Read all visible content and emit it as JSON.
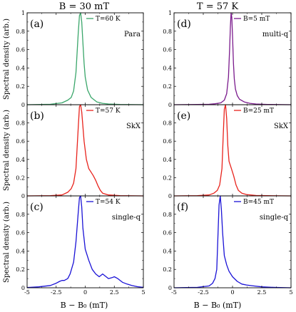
{
  "figure": {
    "col_titles": [
      "B = 30 mT",
      "T = 57 K"
    ],
    "ylabel": "Spectral density (arb.)",
    "xlabel": "B − B₀ (mT)"
  },
  "chart_data": [
    {
      "type": "line",
      "panel": "(a)",
      "annotation": "Para",
      "legend": "T=60 K",
      "color": "#3aa66a",
      "xlim": [
        -5,
        5
      ],
      "ylim": [
        0,
        1.0
      ],
      "xticks": [
        "-5",
        "-2.5",
        "0",
        "2.5",
        "5"
      ],
      "yticks": [
        "0",
        "0.2",
        "0.4",
        "0.6",
        "0.8",
        "1"
      ],
      "series": [
        {
          "name": "T=60 K",
          "x": [
            -5,
            -3,
            -2,
            -1.5,
            -1.2,
            -1.0,
            -0.8,
            -0.6,
            -0.5,
            -0.4,
            -0.3,
            -0.2,
            -0.1,
            0,
            0.2,
            0.5,
            1,
            1.5,
            2,
            3,
            5
          ],
          "y": [
            0,
            0.005,
            0.02,
            0.05,
            0.08,
            0.15,
            0.35,
            0.78,
            0.97,
            1.0,
            0.9,
            0.68,
            0.45,
            0.3,
            0.16,
            0.08,
            0.03,
            0.015,
            0.008,
            0.003,
            0
          ]
        }
      ]
    },
    {
      "type": "line",
      "panel": "(b)",
      "annotation": "SkX",
      "legend": "T=57 K",
      "color": "#e8231c",
      "xlim": [
        -5,
        5
      ],
      "ylim": [
        0,
        1.0
      ],
      "xticks": [
        "-5",
        "-2.5",
        "0",
        "2.5",
        "5"
      ],
      "yticks": [
        "0",
        "0.2",
        "0.4",
        "0.6",
        "0.8",
        "1"
      ],
      "series": [
        {
          "name": "T=57 K",
          "x": [
            -5,
            -3,
            -2,
            -1.5,
            -1.2,
            -1.0,
            -0.8,
            -0.6,
            -0.5,
            -0.4,
            -0.3,
            -0.1,
            0.1,
            0.3,
            0.5,
            0.7,
            0.9,
            1.1,
            1.3,
            1.5,
            2,
            3,
            5
          ],
          "y": [
            0,
            0.003,
            0.01,
            0.04,
            0.08,
            0.14,
            0.3,
            0.75,
            0.98,
            1.0,
            0.92,
            0.6,
            0.4,
            0.3,
            0.26,
            0.22,
            0.17,
            0.11,
            0.06,
            0.03,
            0.01,
            0.003,
            0
          ]
        }
      ]
    },
    {
      "type": "line",
      "panel": "(c)",
      "annotation": "single-q",
      "legend": "T=54 K",
      "color": "#1a12d6",
      "xlim": [
        -5,
        5
      ],
      "ylim": [
        0,
        1.0
      ],
      "xticks": [
        "-5",
        "-2.5",
        "0",
        "2.5",
        "5"
      ],
      "yticks": [
        "0",
        "0.2",
        "0.4",
        "0.6",
        "0.8",
        "1"
      ],
      "series": [
        {
          "name": "T=54 K",
          "x": [
            -5,
            -4,
            -3,
            -2.5,
            -2.2,
            -2.0,
            -1.8,
            -1.5,
            -1.3,
            -1.0,
            -0.8,
            -0.6,
            -0.5,
            -0.4,
            -0.3,
            -0.2,
            0,
            0.3,
            0.6,
            0.9,
            1.2,
            1.5,
            1.8,
            2.0,
            2.3,
            2.5,
            2.8,
            3.2,
            3.6,
            4,
            4.5,
            5
          ],
          "y": [
            0.003,
            0.01,
            0.025,
            0.05,
            0.07,
            0.08,
            0.08,
            0.1,
            0.15,
            0.28,
            0.5,
            0.82,
            0.98,
            1.0,
            0.88,
            0.65,
            0.42,
            0.3,
            0.2,
            0.15,
            0.12,
            0.15,
            0.12,
            0.1,
            0.11,
            0.12,
            0.1,
            0.06,
            0.04,
            0.025,
            0.012,
            0.005
          ]
        }
      ]
    },
    {
      "type": "line",
      "panel": "(d)",
      "annotation": "multi-q",
      "legend": "B=5 mT",
      "color": "#7a1a8c",
      "xlim": [
        -5,
        5
      ],
      "ylim": [
        0,
        1.0
      ],
      "xticks": [
        "-5",
        "-2.5",
        "0",
        "2.5",
        "5"
      ],
      "yticks": [
        "0",
        "0.2",
        "0.4",
        "0.6",
        "0.8",
        "1"
      ],
      "series": [
        {
          "name": "B=5 mT",
          "x": [
            -5,
            -3,
            -2,
            -1.5,
            -1.0,
            -0.7,
            -0.5,
            -0.35,
            -0.25,
            -0.18,
            -0.12,
            -0.06,
            0,
            0.08,
            0.15,
            0.25,
            0.4,
            0.6,
            1,
            1.5,
            2,
            3,
            5
          ],
          "y": [
            0,
            0.002,
            0.005,
            0.01,
            0.02,
            0.05,
            0.12,
            0.3,
            0.6,
            0.85,
            1.0,
            0.95,
            0.75,
            0.45,
            0.28,
            0.17,
            0.1,
            0.06,
            0.03,
            0.015,
            0.008,
            0.003,
            0
          ]
        }
      ]
    },
    {
      "type": "line",
      "panel": "(e)",
      "annotation": "SkX",
      "legend": "B=25 mT",
      "color": "#e8231c",
      "xlim": [
        -5,
        5
      ],
      "ylim": [
        0,
        1.0
      ],
      "xticks": [
        "-5",
        "-2.5",
        "0",
        "2.5",
        "5"
      ],
      "yticks": [
        "0",
        "0.2",
        "0.4",
        "0.6",
        "0.8",
        "1"
      ],
      "series": [
        {
          "name": "B=25 mT",
          "x": [
            -5,
            -3,
            -2,
            -1.6,
            -1.3,
            -1.1,
            -0.9,
            -0.8,
            -0.7,
            -0.6,
            -0.5,
            -0.4,
            -0.3,
            -0.1,
            0.1,
            0.3,
            0.5,
            0.8,
            1.2,
            2,
            3,
            5
          ],
          "y": [
            0,
            0.003,
            0.01,
            0.03,
            0.06,
            0.12,
            0.3,
            0.65,
            0.95,
            1.0,
            0.85,
            0.55,
            0.38,
            0.3,
            0.22,
            0.12,
            0.06,
            0.03,
            0.015,
            0.005,
            0.002,
            0
          ]
        }
      ]
    },
    {
      "type": "line",
      "panel": "(f)",
      "annotation": "single-q",
      "legend": "B=45 mT",
      "color": "#1a12d6",
      "xlim": [
        -5,
        5
      ],
      "ylim": [
        0,
        1.0
      ],
      "xticks": [
        "-5",
        "-2.5",
        "0",
        "2.5",
        "5"
      ],
      "yticks": [
        "0",
        "0.2",
        "0.4",
        "0.6",
        "0.8",
        "1"
      ],
      "series": [
        {
          "name": "B=45 mT",
          "x": [
            -5,
            -3,
            -2,
            -1.7,
            -1.5,
            -1.35,
            -1.25,
            -1.15,
            -1.05,
            -0.95,
            -0.85,
            -0.7,
            -0.5,
            -0.3,
            0,
            0.4,
            0.8,
            1.2,
            1.8,
            2.5,
            3.5,
            5
          ],
          "y": [
            0,
            0.005,
            0.02,
            0.05,
            0.1,
            0.2,
            0.55,
            0.9,
            1.0,
            0.85,
            0.6,
            0.35,
            0.25,
            0.18,
            0.12,
            0.07,
            0.04,
            0.03,
            0.02,
            0.01,
            0.005,
            0
          ]
        }
      ]
    }
  ]
}
